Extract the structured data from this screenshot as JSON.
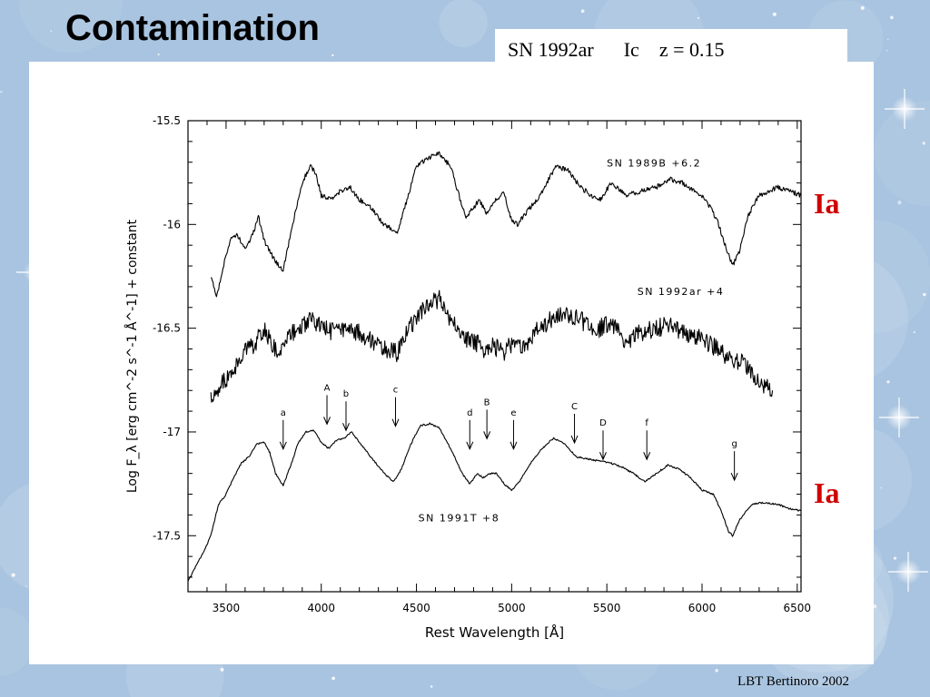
{
  "slide": {
    "title": "Contamination",
    "sn_label": {
      "name": "SN 1992ar",
      "type": "Ic",
      "redshift": "z = 0.15"
    },
    "type_labels": [
      "Ia",
      "Ia"
    ],
    "footer": "LBT Bertinoro 2002"
  },
  "colors": {
    "type_label": "#d10000",
    "background": "#a9c4e0",
    "ink": "#000000"
  },
  "chart_data": {
    "type": "line",
    "xlabel": "Rest Wavelength [Å]",
    "ylabel": "Log F_λ [erg cm^-2 s^-1 Å^-1] + constant",
    "xlim": [
      3300,
      6520
    ],
    "ylim": [
      -17.77,
      -15.5
    ],
    "xticks": [
      3500,
      4000,
      4500,
      5000,
      5500,
      6000,
      6500
    ],
    "yticks": [
      -15.5,
      -16,
      -16.5,
      -17,
      -17.5
    ],
    "ytick_labels": [
      "-15.5",
      "-16",
      "-16.5",
      "-17",
      "-17.5"
    ],
    "grid": false,
    "legend": "none",
    "series": [
      {
        "name": "SN 1989B +6.2",
        "noise": 0.012,
        "points": [
          [
            3420,
            -16.25
          ],
          [
            3450,
            -16.35
          ],
          [
            3480,
            -16.22
          ],
          [
            3520,
            -16.08
          ],
          [
            3560,
            -16.05
          ],
          [
            3600,
            -16.12
          ],
          [
            3640,
            -16.05
          ],
          [
            3670,
            -15.96
          ],
          [
            3700,
            -16.08
          ],
          [
            3760,
            -16.18
          ],
          [
            3800,
            -16.22
          ],
          [
            3850,
            -16.0
          ],
          [
            3900,
            -15.8
          ],
          [
            3940,
            -15.72
          ],
          [
            3970,
            -15.75
          ],
          [
            4000,
            -15.86
          ],
          [
            4050,
            -15.88
          ],
          [
            4100,
            -15.84
          ],
          [
            4150,
            -15.82
          ],
          [
            4200,
            -15.88
          ],
          [
            4260,
            -15.92
          ],
          [
            4330,
            -16.0
          ],
          [
            4400,
            -16.04
          ],
          [
            4450,
            -15.88
          ],
          [
            4500,
            -15.72
          ],
          [
            4560,
            -15.68
          ],
          [
            4620,
            -15.66
          ],
          [
            4680,
            -15.72
          ],
          [
            4720,
            -15.85
          ],
          [
            4760,
            -15.97
          ],
          [
            4800,
            -15.92
          ],
          [
            4830,
            -15.88
          ],
          [
            4870,
            -15.95
          ],
          [
            4920,
            -15.88
          ],
          [
            4960,
            -15.85
          ],
          [
            5000,
            -15.98
          ],
          [
            5030,
            -16.0
          ],
          [
            5080,
            -15.94
          ],
          [
            5150,
            -15.86
          ],
          [
            5230,
            -15.72
          ],
          [
            5300,
            -15.74
          ],
          [
            5360,
            -15.82
          ],
          [
            5420,
            -15.86
          ],
          [
            5470,
            -15.88
          ],
          [
            5520,
            -15.8
          ],
          [
            5600,
            -15.86
          ],
          [
            5680,
            -15.84
          ],
          [
            5760,
            -15.82
          ],
          [
            5830,
            -15.78
          ],
          [
            5900,
            -15.8
          ],
          [
            5960,
            -15.84
          ],
          [
            6020,
            -15.88
          ],
          [
            6080,
            -15.98
          ],
          [
            6130,
            -16.12
          ],
          [
            6160,
            -16.2
          ],
          [
            6200,
            -16.12
          ],
          [
            6240,
            -15.96
          ],
          [
            6300,
            -15.86
          ],
          [
            6400,
            -15.82
          ],
          [
            6460,
            -15.84
          ],
          [
            6520,
            -15.86
          ]
        ]
      },
      {
        "name": "SN 1992ar +4",
        "noise": 0.045,
        "points": [
          [
            3420,
            -16.85
          ],
          [
            3450,
            -16.8
          ],
          [
            3500,
            -16.75
          ],
          [
            3550,
            -16.68
          ],
          [
            3600,
            -16.62
          ],
          [
            3650,
            -16.58
          ],
          [
            3700,
            -16.5
          ],
          [
            3760,
            -16.6
          ],
          [
            3800,
            -16.58
          ],
          [
            3850,
            -16.52
          ],
          [
            3900,
            -16.48
          ],
          [
            3950,
            -16.46
          ],
          [
            4000,
            -16.48
          ],
          [
            4050,
            -16.52
          ],
          [
            4100,
            -16.5
          ],
          [
            4150,
            -16.52
          ],
          [
            4200,
            -16.52
          ],
          [
            4260,
            -16.56
          ],
          [
            4330,
            -16.6
          ],
          [
            4400,
            -16.62
          ],
          [
            4450,
            -16.52
          ],
          [
            4500,
            -16.45
          ],
          [
            4560,
            -16.38
          ],
          [
            4620,
            -16.36
          ],
          [
            4680,
            -16.46
          ],
          [
            4740,
            -16.54
          ],
          [
            4800,
            -16.56
          ],
          [
            4850,
            -16.6
          ],
          [
            4900,
            -16.58
          ],
          [
            4950,
            -16.62
          ],
          [
            5000,
            -16.58
          ],
          [
            5060,
            -16.6
          ],
          [
            5120,
            -16.52
          ],
          [
            5200,
            -16.46
          ],
          [
            5260,
            -16.44
          ],
          [
            5320,
            -16.44
          ],
          [
            5400,
            -16.48
          ],
          [
            5460,
            -16.5
          ],
          [
            5520,
            -16.48
          ],
          [
            5600,
            -16.56
          ],
          [
            5680,
            -16.52
          ],
          [
            5760,
            -16.5
          ],
          [
            5840,
            -16.48
          ],
          [
            5900,
            -16.52
          ],
          [
            5960,
            -16.54
          ],
          [
            6020,
            -16.56
          ],
          [
            6080,
            -16.6
          ],
          [
            6140,
            -16.64
          ],
          [
            6200,
            -16.66
          ],
          [
            6260,
            -16.72
          ],
          [
            6320,
            -16.78
          ],
          [
            6370,
            -16.8
          ]
        ]
      },
      {
        "name": "SN 1991T +8",
        "noise": 0.004,
        "points": [
          [
            3300,
            -17.72
          ],
          [
            3340,
            -17.65
          ],
          [
            3380,
            -17.58
          ],
          [
            3420,
            -17.5
          ],
          [
            3460,
            -17.35
          ],
          [
            3500,
            -17.3
          ],
          [
            3540,
            -17.22
          ],
          [
            3580,
            -17.15
          ],
          [
            3620,
            -17.12
          ],
          [
            3660,
            -17.06
          ],
          [
            3700,
            -17.05
          ],
          [
            3730,
            -17.1
          ],
          [
            3760,
            -17.2
          ],
          [
            3800,
            -17.26
          ],
          [
            3840,
            -17.16
          ],
          [
            3880,
            -17.05
          ],
          [
            3920,
            -17.0
          ],
          [
            3960,
            -16.99
          ],
          [
            4000,
            -17.05
          ],
          [
            4040,
            -17.08
          ],
          [
            4080,
            -17.04
          ],
          [
            4120,
            -17.03
          ],
          [
            4160,
            -17.0
          ],
          [
            4200,
            -17.05
          ],
          [
            4260,
            -17.12
          ],
          [
            4330,
            -17.2
          ],
          [
            4380,
            -17.24
          ],
          [
            4420,
            -17.18
          ],
          [
            4470,
            -17.06
          ],
          [
            4520,
            -16.97
          ],
          [
            4570,
            -16.96
          ],
          [
            4620,
            -16.98
          ],
          [
            4680,
            -17.08
          ],
          [
            4740,
            -17.2
          ],
          [
            4780,
            -17.25
          ],
          [
            4820,
            -17.2
          ],
          [
            4850,
            -17.22
          ],
          [
            4880,
            -17.2
          ],
          [
            4920,
            -17.2
          ],
          [
            4960,
            -17.25
          ],
          [
            5000,
            -17.28
          ],
          [
            5040,
            -17.24
          ],
          [
            5100,
            -17.15
          ],
          [
            5160,
            -17.08
          ],
          [
            5220,
            -17.03
          ],
          [
            5280,
            -17.06
          ],
          [
            5340,
            -17.12
          ],
          [
            5400,
            -17.13
          ],
          [
            5460,
            -17.14
          ],
          [
            5520,
            -17.15
          ],
          [
            5580,
            -17.17
          ],
          [
            5640,
            -17.2
          ],
          [
            5700,
            -17.24
          ],
          [
            5760,
            -17.2
          ],
          [
            5820,
            -17.16
          ],
          [
            5880,
            -17.18
          ],
          [
            5940,
            -17.22
          ],
          [
            6000,
            -17.28
          ],
          [
            6060,
            -17.3
          ],
          [
            6100,
            -17.38
          ],
          [
            6140,
            -17.48
          ],
          [
            6160,
            -17.5
          ],
          [
            6200,
            -17.42
          ],
          [
            6260,
            -17.35
          ],
          [
            6320,
            -17.34
          ],
          [
            6400,
            -17.35
          ],
          [
            6460,
            -17.37
          ],
          [
            6520,
            -17.38
          ]
        ]
      }
    ],
    "series_labels": [
      {
        "text": "SN 1989B +6.2",
        "x": 5500,
        "y": -15.72
      },
      {
        "text": "SN 1992ar +4",
        "x": 5660,
        "y": -16.34
      },
      {
        "text": "SN 1991T +8",
        "x": 4510,
        "y": -17.43
      }
    ],
    "markers": [
      {
        "label": "a",
        "x": 3800,
        "tip": -17.1
      },
      {
        "label": "A",
        "x": 4030,
        "tip": -16.98
      },
      {
        "label": "b",
        "x": 4130,
        "tip": -17.01
      },
      {
        "label": "c",
        "x": 4390,
        "tip": -16.99
      },
      {
        "label": "d",
        "x": 4780,
        "tip": -17.1
      },
      {
        "label": "B",
        "x": 4870,
        "tip": -17.05
      },
      {
        "label": "e",
        "x": 5010,
        "tip": -17.1
      },
      {
        "label": "C",
        "x": 5330,
        "tip": -17.07
      },
      {
        "label": "D",
        "x": 5480,
        "tip": -17.15
      },
      {
        "label": "f",
        "x": 5710,
        "tip": -17.15
      },
      {
        "label": "g",
        "x": 6170,
        "tip": -17.25
      }
    ]
  }
}
